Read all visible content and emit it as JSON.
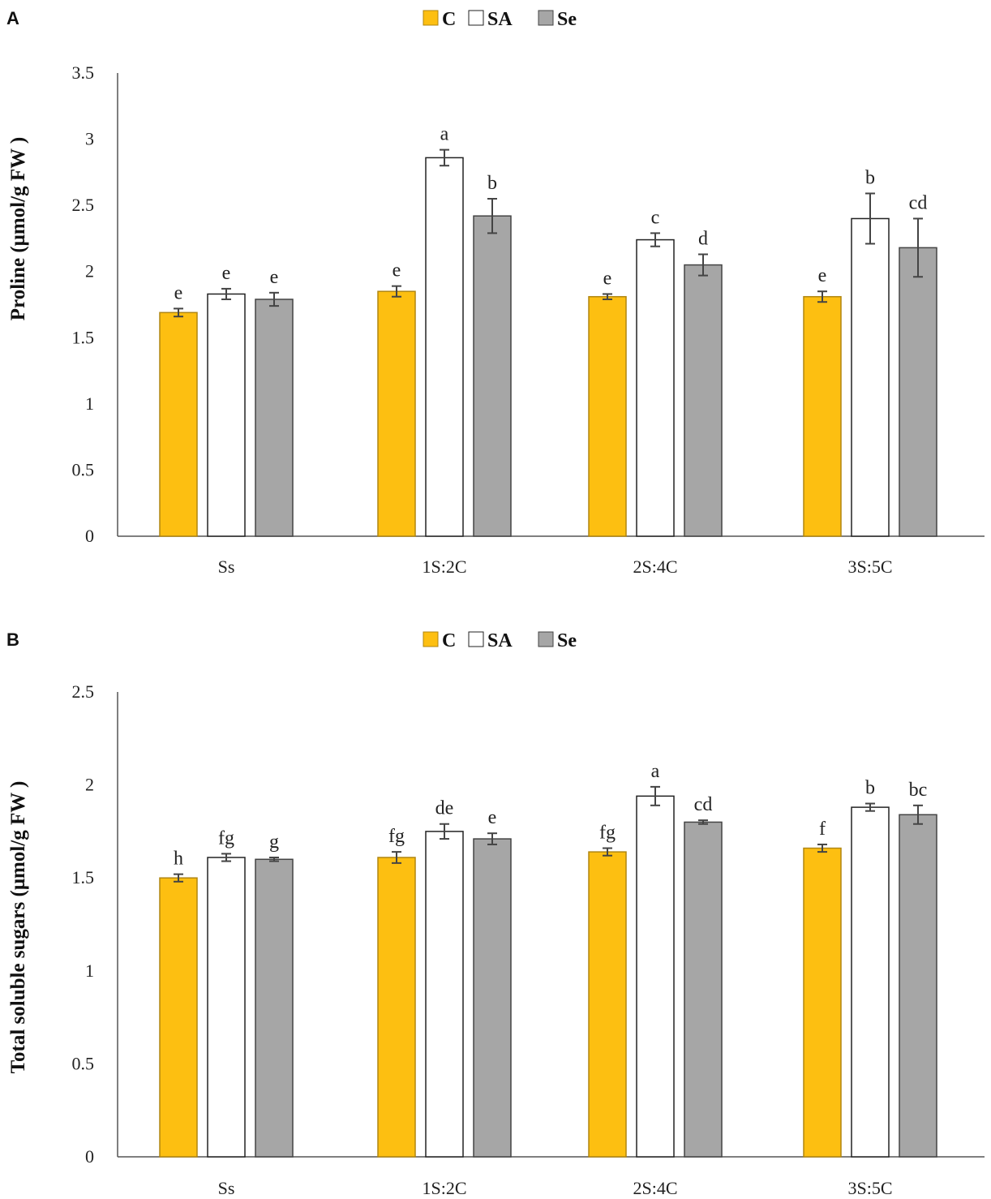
{
  "chart_data": [
    {
      "type": "bar",
      "panel": "A",
      "legend": [
        {
          "name": "C",
          "color": "#FDBF11",
          "stroke": "#B08610"
        },
        {
          "name": "SA",
          "color": "#FFFFFF",
          "stroke": "#222222"
        },
        {
          "name": "Se",
          "color": "#A6A6A6",
          "stroke": "#444444"
        }
      ],
      "ylabel": "Proline (μmol/g FW )",
      "ylim": [
        0,
        3.5
      ],
      "yticks": [
        "0",
        "0.5",
        "1",
        "1.5",
        "2",
        "2.5",
        "3",
        "3.5"
      ],
      "ytick_values": [
        0,
        0.5,
        1,
        1.5,
        2,
        2.5,
        3,
        3.5
      ],
      "categories": [
        "Ss",
        "1S:2C",
        "2S:4C",
        "3S:5C"
      ],
      "series": [
        {
          "name": "C",
          "values": [
            1.69,
            1.85,
            1.81,
            1.81
          ],
          "errors": [
            0.03,
            0.04,
            0.02,
            0.04
          ],
          "letters": [
            "e",
            "e",
            "e",
            "e"
          ]
        },
        {
          "name": "SA",
          "values": [
            1.83,
            2.86,
            2.24,
            2.4
          ],
          "errors": [
            0.04,
            0.06,
            0.05,
            0.19
          ],
          "letters": [
            "e",
            "a",
            "c",
            "b"
          ]
        },
        {
          "name": "Se",
          "values": [
            1.79,
            2.42,
            2.05,
            2.18
          ],
          "errors": [
            0.05,
            0.13,
            0.08,
            0.22
          ],
          "letters": [
            "e",
            "b",
            "d",
            "cd"
          ]
        }
      ]
    },
    {
      "type": "bar",
      "panel": "B",
      "legend": [
        {
          "name": "C",
          "color": "#FDBF11",
          "stroke": "#B08610"
        },
        {
          "name": "SA",
          "color": "#FFFFFF",
          "stroke": "#222222"
        },
        {
          "name": "Se",
          "color": "#A6A6A6",
          "stroke": "#444444"
        }
      ],
      "ylabel": "Total soluble sugars (μmol/g FW )",
      "ylim": [
        0,
        2.5
      ],
      "yticks": [
        "0",
        "0.5",
        "1",
        "1.5",
        "2",
        "2.5"
      ],
      "ytick_values": [
        0,
        0.5,
        1,
        1.5,
        2,
        2.5
      ],
      "categories": [
        "Ss",
        "1S:2C",
        "2S:4C",
        "3S:5C"
      ],
      "series": [
        {
          "name": "C",
          "values": [
            1.5,
            1.61,
            1.64,
            1.66
          ],
          "errors": [
            0.02,
            0.03,
            0.02,
            0.02
          ],
          "letters": [
            "h",
            "fg",
            "fg",
            "f"
          ]
        },
        {
          "name": "SA",
          "values": [
            1.61,
            1.75,
            1.94,
            1.88
          ],
          "errors": [
            0.02,
            0.04,
            0.05,
            0.02
          ],
          "letters": [
            "fg",
            "de",
            "a",
            "b"
          ]
        },
        {
          "name": "Se",
          "values": [
            1.6,
            1.71,
            1.8,
            1.84
          ],
          "errors": [
            0.01,
            0.03,
            0.01,
            0.05
          ],
          "letters": [
            "g",
            "e",
            "cd",
            "bc"
          ]
        }
      ]
    }
  ]
}
